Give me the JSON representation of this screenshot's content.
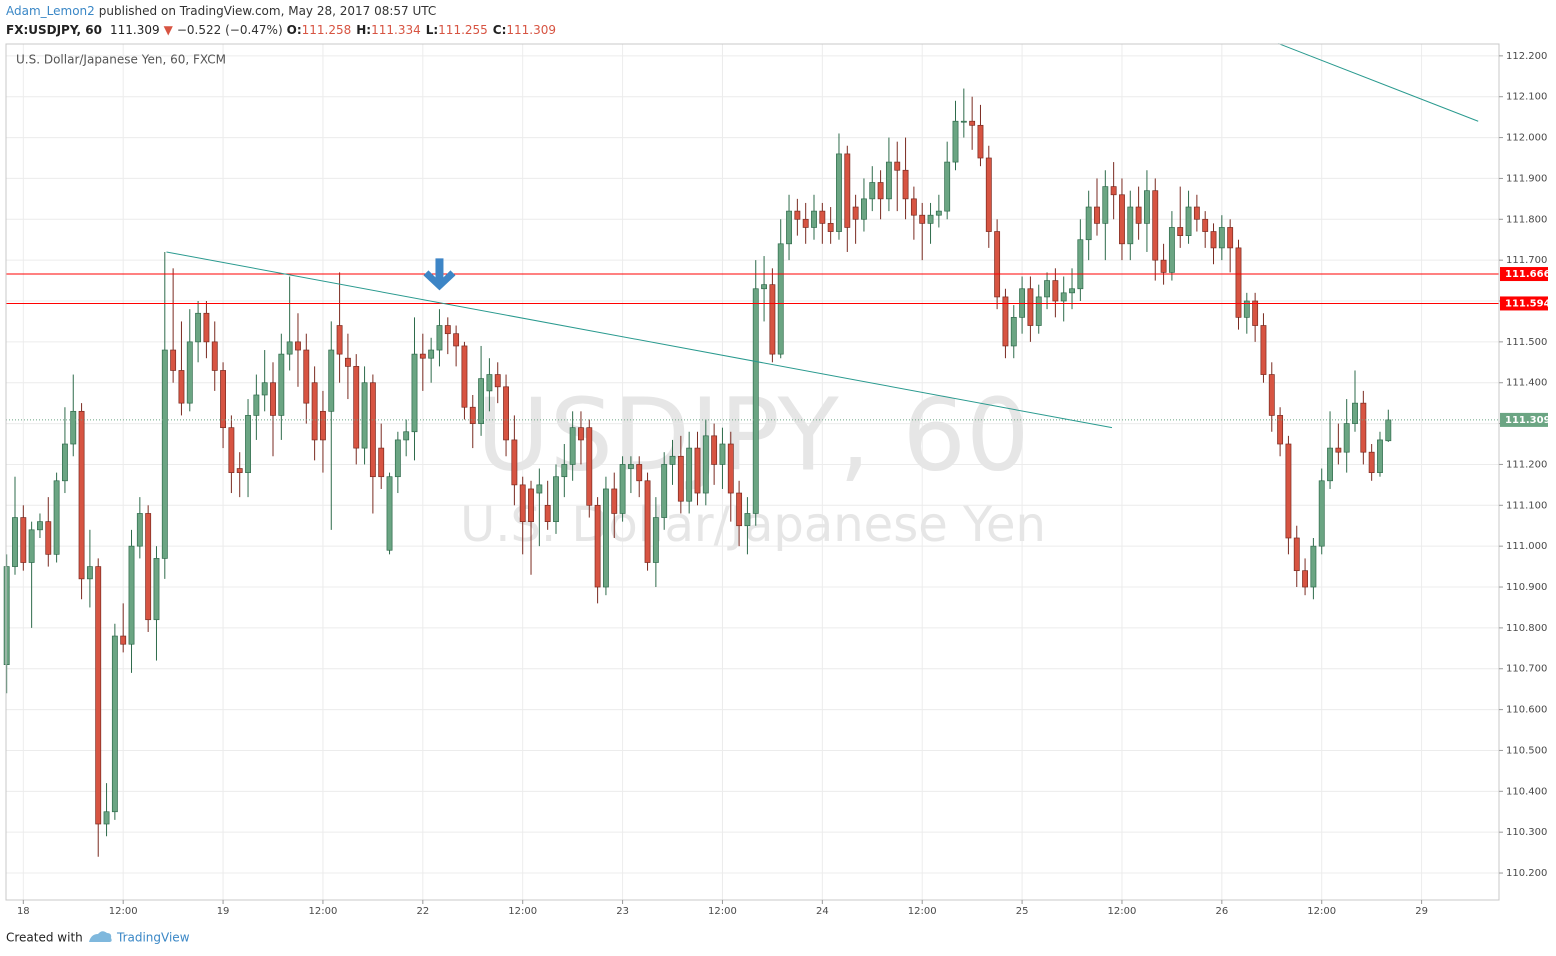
{
  "header": {
    "author": "Adam_Lemon2",
    "published": "published on TradingView.com, May 28, 2017 08:57 UTC",
    "symbol": "FX:USDJPY, 60",
    "direction": "▼",
    "change": "−0.522 (−0.47%)",
    "ohlc_labels": [
      "O:",
      "H:",
      "L:",
      "C:"
    ]
  },
  "footer": {
    "created": "Created with",
    "brand": "TradingView"
  },
  "chart_data": {
    "type": "candlestick",
    "title": "U.S. Dollar/Japanese Yen, 60, FXCM",
    "watermark": [
      "USDJPY, 60",
      "U.S. Dollar/Japanese Yen"
    ],
    "up_color": "#6ba583",
    "down_color": "#d75442",
    "grid": true,
    "xlim": [
      -0.08,
      179.3
    ],
    "ylim": [
      110.134,
      112.229
    ],
    "xticks": [
      {
        "value": 2,
        "label": "18"
      },
      {
        "value": 14,
        "label": "12:00"
      },
      {
        "value": 26,
        "label": "19"
      },
      {
        "value": 38,
        "label": "12:00"
      },
      {
        "value": 50,
        "label": "22"
      },
      {
        "value": 62,
        "label": "12:00"
      },
      {
        "value": 74,
        "label": "23"
      },
      {
        "value": 86,
        "label": "12:00"
      },
      {
        "value": 98,
        "label": "24"
      },
      {
        "value": 110,
        "label": "12:00"
      },
      {
        "value": 122,
        "label": "25"
      },
      {
        "value": 134,
        "label": "12:00"
      },
      {
        "value": 146,
        "label": "26"
      },
      {
        "value": 158,
        "label": "12:00"
      },
      {
        "value": 170,
        "label": "29"
      }
    ],
    "yticks": [
      {
        "value": 110.2,
        "label": "110.200"
      },
      {
        "value": 110.3,
        "label": "110.300"
      },
      {
        "value": 110.4,
        "label": "110.400"
      },
      {
        "value": 110.5,
        "label": "110.500"
      },
      {
        "value": 110.6,
        "label": "110.600"
      },
      {
        "value": 110.7,
        "label": "110.700"
      },
      {
        "value": 110.8,
        "label": "110.800"
      },
      {
        "value": 110.9,
        "label": "110.900"
      },
      {
        "value": 111.0,
        "label": "111.000"
      },
      {
        "value": 111.1,
        "label": "111.100"
      },
      {
        "value": 111.2,
        "label": "111.200"
      },
      {
        "value": 111.3,
        "label": "111.300"
      },
      {
        "value": 111.4,
        "label": "111.400"
      },
      {
        "value": 111.5,
        "label": "111.500"
      },
      {
        "value": 111.6,
        "label": "111.600"
      },
      {
        "value": 111.7,
        "label": "111.700"
      },
      {
        "value": 111.8,
        "label": "111.800"
      },
      {
        "value": 111.9,
        "label": "111.900"
      },
      {
        "value": 112.0,
        "label": "112.000"
      },
      {
        "value": 112.1,
        "label": "112.100"
      },
      {
        "value": 112.2,
        "label": "112.200"
      }
    ],
    "levels": [
      {
        "value": 111.666,
        "color": "#ff0000"
      },
      {
        "value": 111.594,
        "color": "#ff0000"
      }
    ],
    "trend_lines": [
      {
        "x": [
          19.2,
          132.8
        ],
        "y": [
          111.72,
          111.29
        ],
        "color": "#2a9a8f"
      },
      {
        "x": [
          152.8,
          176.8
        ],
        "y": [
          112.23,
          112.04
        ],
        "color": "#2a9a8f"
      }
    ],
    "arrow": {
      "x": 52,
      "y": 111.626,
      "color": "#3d85c6"
    },
    "ohlc": [
      [
        110.71,
        110.98,
        110.64,
        110.95
      ],
      [
        110.95,
        111.17,
        110.93,
        111.07
      ],
      [
        111.07,
        111.1,
        110.94,
        110.96
      ],
      [
        110.96,
        111.06,
        110.8,
        111.04
      ],
      [
        111.04,
        111.08,
        111.02,
        111.06
      ],
      [
        111.06,
        111.12,
        110.95,
        110.98
      ],
      [
        110.98,
        111.18,
        110.96,
        111.16
      ],
      [
        111.16,
        111.34,
        111.13,
        111.25
      ],
      [
        111.25,
        111.42,
        111.22,
        111.33
      ],
      [
        111.33,
        111.35,
        110.87,
        110.92
      ],
      [
        110.92,
        111.04,
        110.85,
        110.95
      ],
      [
        110.95,
        110.97,
        110.24,
        110.32
      ],
      [
        110.32,
        110.42,
        110.29,
        110.35
      ],
      [
        110.35,
        110.81,
        110.33,
        110.78
      ],
      [
        110.78,
        110.86,
        110.74,
        110.76
      ],
      [
        110.76,
        111.04,
        110.69,
        111.0
      ],
      [
        111.0,
        111.12,
        110.97,
        111.08
      ],
      [
        111.08,
        111.1,
        110.79,
        110.82
      ],
      [
        110.82,
        111.0,
        110.72,
        110.97
      ],
      [
        110.97,
        111.72,
        110.92,
        111.48
      ],
      [
        111.48,
        111.68,
        111.4,
        111.43
      ],
      [
        111.43,
        111.55,
        111.32,
        111.35
      ],
      [
        111.35,
        111.58,
        111.33,
        111.5
      ],
      [
        111.5,
        111.6,
        111.45,
        111.57
      ],
      [
        111.57,
        111.6,
        111.46,
        111.5
      ],
      [
        111.5,
        111.55,
        111.38,
        111.43
      ],
      [
        111.43,
        111.45,
        111.24,
        111.29
      ],
      [
        111.29,
        111.32,
        111.13,
        111.18
      ],
      [
        111.19,
        111.23,
        111.12,
        111.18
      ],
      [
        111.18,
        111.36,
        111.12,
        111.32
      ],
      [
        111.32,
        111.42,
        111.26,
        111.37
      ],
      [
        111.37,
        111.48,
        111.33,
        111.4
      ],
      [
        111.4,
        111.45,
        111.22,
        111.32
      ],
      [
        111.32,
        111.52,
        111.26,
        111.47
      ],
      [
        111.47,
        111.66,
        111.43,
        111.5
      ],
      [
        111.5,
        111.57,
        111.39,
        111.48
      ],
      [
        111.48,
        111.52,
        111.3,
        111.35
      ],
      [
        111.4,
        111.44,
        111.21,
        111.26
      ],
      [
        111.33,
        111.38,
        111.18,
        111.26
      ],
      [
        111.33,
        111.55,
        111.04,
        111.48
      ],
      [
        111.54,
        111.67,
        111.4,
        111.47
      ],
      [
        111.46,
        111.52,
        111.36,
        111.44
      ],
      [
        111.44,
        111.47,
        111.2,
        111.24
      ],
      [
        111.24,
        111.44,
        111.2,
        111.4
      ],
      [
        111.4,
        111.42,
        111.08,
        111.17
      ],
      [
        111.24,
        111.3,
        111.14,
        111.17
      ],
      [
        110.99,
        111.18,
        110.98,
        111.17
      ],
      [
        111.17,
        111.28,
        111.13,
        111.26
      ],
      [
        111.26,
        111.31,
        111.22,
        111.28
      ],
      [
        111.28,
        111.56,
        111.21,
        111.47
      ],
      [
        111.47,
        111.52,
        111.38,
        111.46
      ],
      [
        111.46,
        111.51,
        111.4,
        111.48
      ],
      [
        111.48,
        111.58,
        111.44,
        111.54
      ],
      [
        111.54,
        111.56,
        111.47,
        111.52
      ],
      [
        111.52,
        111.54,
        111.44,
        111.49
      ],
      [
        111.49,
        111.5,
        111.31,
        111.34
      ],
      [
        111.34,
        111.37,
        111.24,
        111.3
      ],
      [
        111.3,
        111.49,
        111.27,
        111.41
      ],
      [
        111.38,
        111.46,
        111.33,
        111.42
      ],
      [
        111.42,
        111.45,
        111.35,
        111.39
      ],
      [
        111.39,
        111.42,
        111.22,
        111.26
      ],
      [
        111.26,
        111.32,
        111.1,
        111.15
      ],
      [
        111.15,
        111.17,
        110.98,
        111.06
      ],
      [
        111.14,
        111.16,
        110.93,
        111.06
      ],
      [
        111.13,
        111.19,
        111.0,
        111.15
      ],
      [
        111.1,
        111.16,
        111.04,
        111.06
      ],
      [
        111.06,
        111.2,
        111.03,
        111.17
      ],
      [
        111.17,
        111.25,
        111.12,
        111.2
      ],
      [
        111.2,
        111.33,
        111.16,
        111.29
      ],
      [
        111.29,
        111.33,
        111.2,
        111.26
      ],
      [
        111.29,
        111.31,
        111.07,
        111.1
      ],
      [
        111.1,
        111.12,
        110.86,
        110.9
      ],
      [
        110.9,
        111.17,
        110.88,
        111.14
      ],
      [
        111.14,
        111.18,
        111.02,
        111.08
      ],
      [
        111.08,
        111.22,
        111.06,
        111.2
      ],
      [
        111.19,
        111.22,
        111.13,
        111.2
      ],
      [
        111.2,
        111.22,
        111.12,
        111.16
      ],
      [
        111.16,
        111.18,
        110.94,
        110.96
      ],
      [
        110.96,
        111.12,
        110.9,
        111.07
      ],
      [
        111.07,
        111.23,
        111.04,
        111.2
      ],
      [
        111.2,
        111.26,
        111.15,
        111.22
      ],
      [
        111.22,
        111.27,
        111.08,
        111.11
      ],
      [
        111.11,
        111.28,
        111.08,
        111.24
      ],
      [
        111.24,
        111.28,
        111.1,
        111.13
      ],
      [
        111.13,
        111.31,
        111.1,
        111.27
      ],
      [
        111.27,
        111.3,
        111.15,
        111.2
      ],
      [
        111.2,
        111.29,
        111.14,
        111.25
      ],
      [
        111.25,
        111.28,
        111.06,
        111.13
      ],
      [
        111.13,
        111.16,
        111.0,
        111.05
      ],
      [
        111.05,
        111.12,
        110.98,
        111.08
      ],
      [
        111.08,
        111.7,
        111.05,
        111.63
      ],
      [
        111.63,
        111.71,
        111.55,
        111.64
      ],
      [
        111.64,
        111.68,
        111.45,
        111.47
      ],
      [
        111.47,
        111.8,
        111.46,
        111.74
      ],
      [
        111.74,
        111.86,
        111.7,
        111.82
      ],
      [
        111.82,
        111.85,
        111.76,
        111.8
      ],
      [
        111.8,
        111.84,
        111.74,
        111.78
      ],
      [
        111.78,
        111.86,
        111.75,
        111.82
      ],
      [
        111.82,
        111.84,
        111.74,
        111.79
      ],
      [
        111.79,
        111.83,
        111.74,
        111.77
      ],
      [
        111.77,
        112.01,
        111.75,
        111.96
      ],
      [
        111.96,
        111.98,
        111.72,
        111.78
      ],
      [
        111.83,
        111.86,
        111.74,
        111.8
      ],
      [
        111.8,
        111.9,
        111.77,
        111.85
      ],
      [
        111.85,
        111.93,
        111.82,
        111.89
      ],
      [
        111.89,
        111.92,
        111.8,
        111.85
      ],
      [
        111.85,
        112.0,
        111.82,
        111.94
      ],
      [
        111.94,
        111.99,
        111.82,
        111.92
      ],
      [
        111.92,
        112.0,
        111.8,
        111.85
      ],
      [
        111.85,
        111.88,
        111.75,
        111.81
      ],
      [
        111.81,
        111.84,
        111.7,
        111.79
      ],
      [
        111.79,
        111.84,
        111.74,
        111.81
      ],
      [
        111.81,
        111.86,
        111.78,
        111.82
      ],
      [
        111.82,
        111.99,
        111.8,
        111.94
      ],
      [
        111.94,
        112.09,
        111.92,
        112.04
      ],
      [
        112.04,
        112.12,
        112.0,
        112.04
      ],
      [
        112.04,
        112.1,
        111.97,
        112.03
      ],
      [
        112.03,
        112.08,
        111.93,
        111.95
      ],
      [
        111.95,
        111.98,
        111.73,
        111.77
      ],
      [
        111.77,
        111.8,
        111.58,
        111.61
      ],
      [
        111.61,
        111.63,
        111.46,
        111.49
      ],
      [
        111.49,
        111.59,
        111.46,
        111.56
      ],
      [
        111.56,
        111.66,
        111.52,
        111.63
      ],
      [
        111.63,
        111.66,
        111.5,
        111.54
      ],
      [
        111.54,
        111.64,
        111.52,
        111.61
      ],
      [
        111.61,
        111.67,
        111.58,
        111.65
      ],
      [
        111.65,
        111.68,
        111.56,
        111.6
      ],
      [
        111.6,
        111.66,
        111.55,
        111.62
      ],
      [
        111.62,
        111.68,
        111.58,
        111.63
      ],
      [
        111.63,
        111.8,
        111.6,
        111.75
      ],
      [
        111.75,
        111.87,
        111.7,
        111.83
      ],
      [
        111.83,
        111.9,
        111.76,
        111.79
      ],
      [
        111.79,
        111.92,
        111.7,
        111.88
      ],
      [
        111.88,
        111.94,
        111.8,
        111.86
      ],
      [
        111.86,
        111.9,
        111.7,
        111.74
      ],
      [
        111.74,
        111.87,
        111.7,
        111.83
      ],
      [
        111.83,
        111.88,
        111.75,
        111.79
      ],
      [
        111.79,
        111.92,
        111.72,
        111.87
      ],
      [
        111.87,
        111.9,
        111.65,
        111.7
      ],
      [
        111.7,
        111.74,
        111.64,
        111.67
      ],
      [
        111.67,
        111.82,
        111.65,
        111.78
      ],
      [
        111.78,
        111.88,
        111.73,
        111.76
      ],
      [
        111.76,
        111.87,
        111.74,
        111.83
      ],
      [
        111.83,
        111.86,
        111.77,
        111.8
      ],
      [
        111.8,
        111.82,
        111.73,
        111.77
      ],
      [
        111.77,
        111.79,
        111.69,
        111.73
      ],
      [
        111.73,
        111.81,
        111.7,
        111.78
      ],
      [
        111.78,
        111.8,
        111.67,
        111.73
      ],
      [
        111.73,
        111.75,
        111.53,
        111.56
      ],
      [
        111.56,
        111.62,
        111.52,
        111.6
      ],
      [
        111.6,
        111.62,
        111.5,
        111.54
      ],
      [
        111.54,
        111.57,
        111.4,
        111.42
      ],
      [
        111.42,
        111.45,
        111.28,
        111.32
      ],
      [
        111.32,
        111.34,
        111.22,
        111.25
      ],
      [
        111.25,
        111.27,
        110.98,
        111.02
      ],
      [
        111.02,
        111.05,
        110.9,
        110.94
      ],
      [
        110.94,
        110.97,
        110.88,
        110.9
      ],
      [
        110.9,
        111.02,
        110.87,
        111.0
      ],
      [
        111.0,
        111.19,
        110.98,
        111.16
      ],
      [
        111.16,
        111.33,
        111.14,
        111.24
      ],
      [
        111.24,
        111.3,
        111.2,
        111.23
      ],
      [
        111.23,
        111.36,
        111.18,
        111.3
      ],
      [
        111.3,
        111.43,
        111.28,
        111.35
      ],
      [
        111.35,
        111.38,
        111.2,
        111.23
      ],
      [
        111.23,
        111.25,
        111.16,
        111.18
      ],
      [
        111.18,
        111.28,
        111.17,
        111.26
      ],
      [
        111.258,
        111.334,
        111.255,
        111.309
      ]
    ]
  }
}
